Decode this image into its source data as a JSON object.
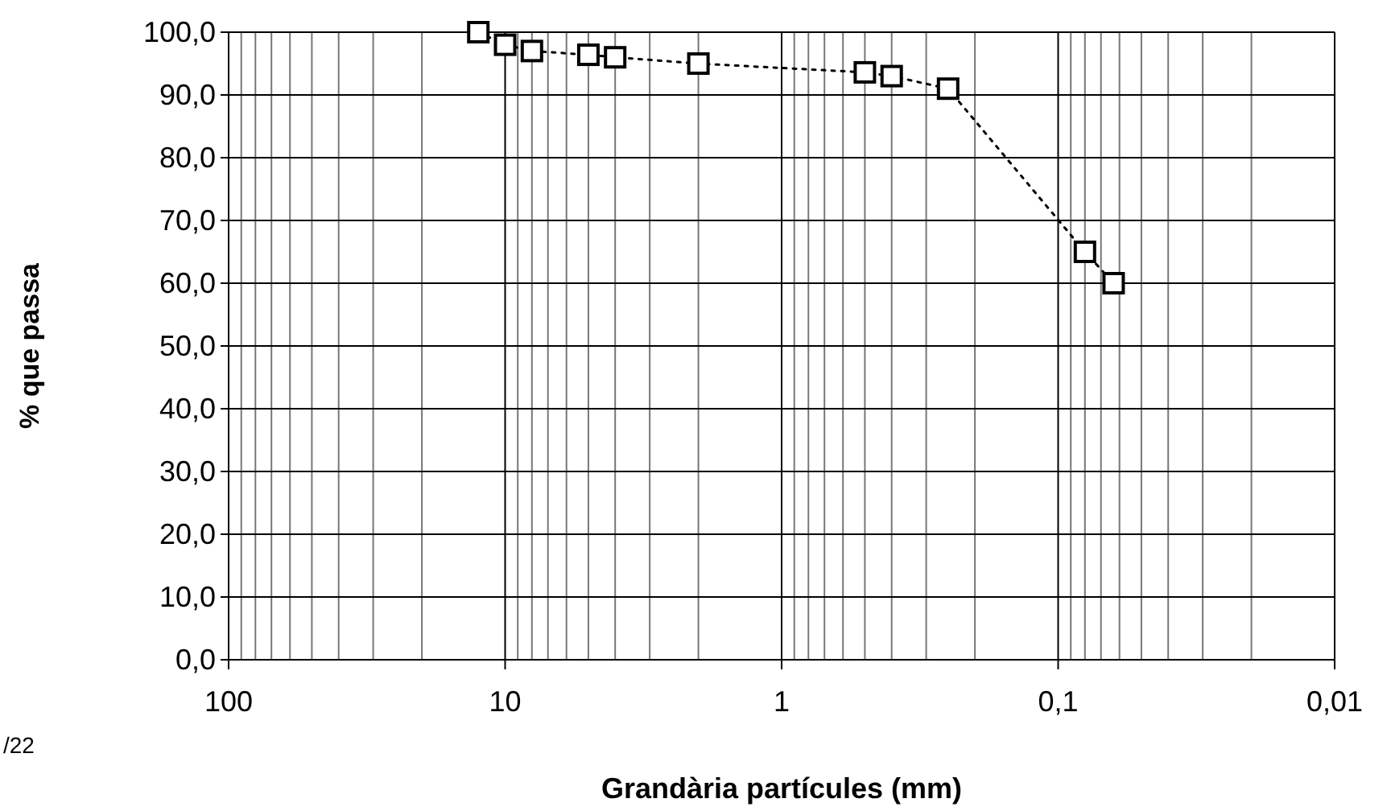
{
  "chart_data": {
    "type": "line",
    "xlabel": "Grandària partícules (mm)",
    "ylabel": "% que passa",
    "log": "x",
    "x": [
      12.5,
      10,
      8,
      5,
      4,
      2,
      0.5,
      0.4,
      0.25,
      0.08,
      0.063
    ],
    "values": [
      100,
      98,
      97,
      96.4,
      96,
      95,
      93.6,
      93,
      91,
      65,
      60
    ],
    "color": "#000000",
    "marker": "square",
    "line_style": "dotted",
    "grid": true,
    "xlim": [
      100,
      0.01
    ],
    "xticks": [
      100,
      {
        "value": 90,
        "label": null
      },
      {
        "value": 80,
        "label": null
      },
      {
        "value": 70,
        "label": null
      },
      {
        "value": 60,
        "label": null
      },
      {
        "value": 50,
        "label": null
      },
      {
        "value": 40,
        "label": null
      },
      {
        "value": 30,
        "label": null
      },
      {
        "value": 20,
        "label": null
      },
      10,
      {
        "value": 9,
        "label": null
      },
      {
        "value": 8,
        "label": null
      },
      {
        "value": 7,
        "label": null
      },
      {
        "value": 6,
        "label": null
      },
      {
        "value": 5,
        "label": null
      },
      {
        "value": 4,
        "label": null
      },
      {
        "value": 3,
        "label": null
      },
      {
        "value": 2,
        "label": null
      },
      1,
      {
        "value": 0.9,
        "label": null
      },
      {
        "value": 0.8,
        "label": null
      },
      {
        "value": 0.7,
        "label": null
      },
      {
        "value": 0.6,
        "label": null
      },
      {
        "value": 0.5,
        "label": null
      },
      {
        "value": 0.4,
        "label": null
      },
      {
        "value": 0.3,
        "label": null
      },
      {
        "value": 0.2,
        "label": null
      },
      {
        "value": 0.1,
        "label": "0,1"
      },
      {
        "value": 0.09,
        "label": null
      },
      {
        "value": 0.08,
        "label": null
      },
      {
        "value": 0.07,
        "label": null
      },
      {
        "value": 0.06,
        "label": null
      },
      {
        "value": 0.05,
        "label": null
      },
      {
        "value": 0.04,
        "label": null
      },
      {
        "value": 0.03,
        "label": null
      },
      {
        "value": 0.02,
        "label": null
      },
      {
        "value": 0.01,
        "label": "0,01"
      }
    ],
    "ylim": [
      0,
      100
    ],
    "yticks": [
      {
        "value": 0,
        "label": "0,0"
      },
      {
        "value": 10,
        "label": "10,0"
      },
      {
        "value": 20,
        "label": "20,0"
      },
      {
        "value": 30,
        "label": "30,0"
      },
      {
        "value": 40,
        "label": "40,0"
      },
      {
        "value": 50,
        "label": "50,0"
      },
      {
        "value": 60,
        "label": "60,0"
      },
      {
        "value": 70,
        "label": "70,0"
      },
      {
        "value": 80,
        "label": "80,0"
      },
      {
        "value": 90,
        "label": "90,0"
      },
      {
        "value": 100,
        "label": "100,0"
      }
    ],
    "annotations": [
      "/22"
    ]
  }
}
